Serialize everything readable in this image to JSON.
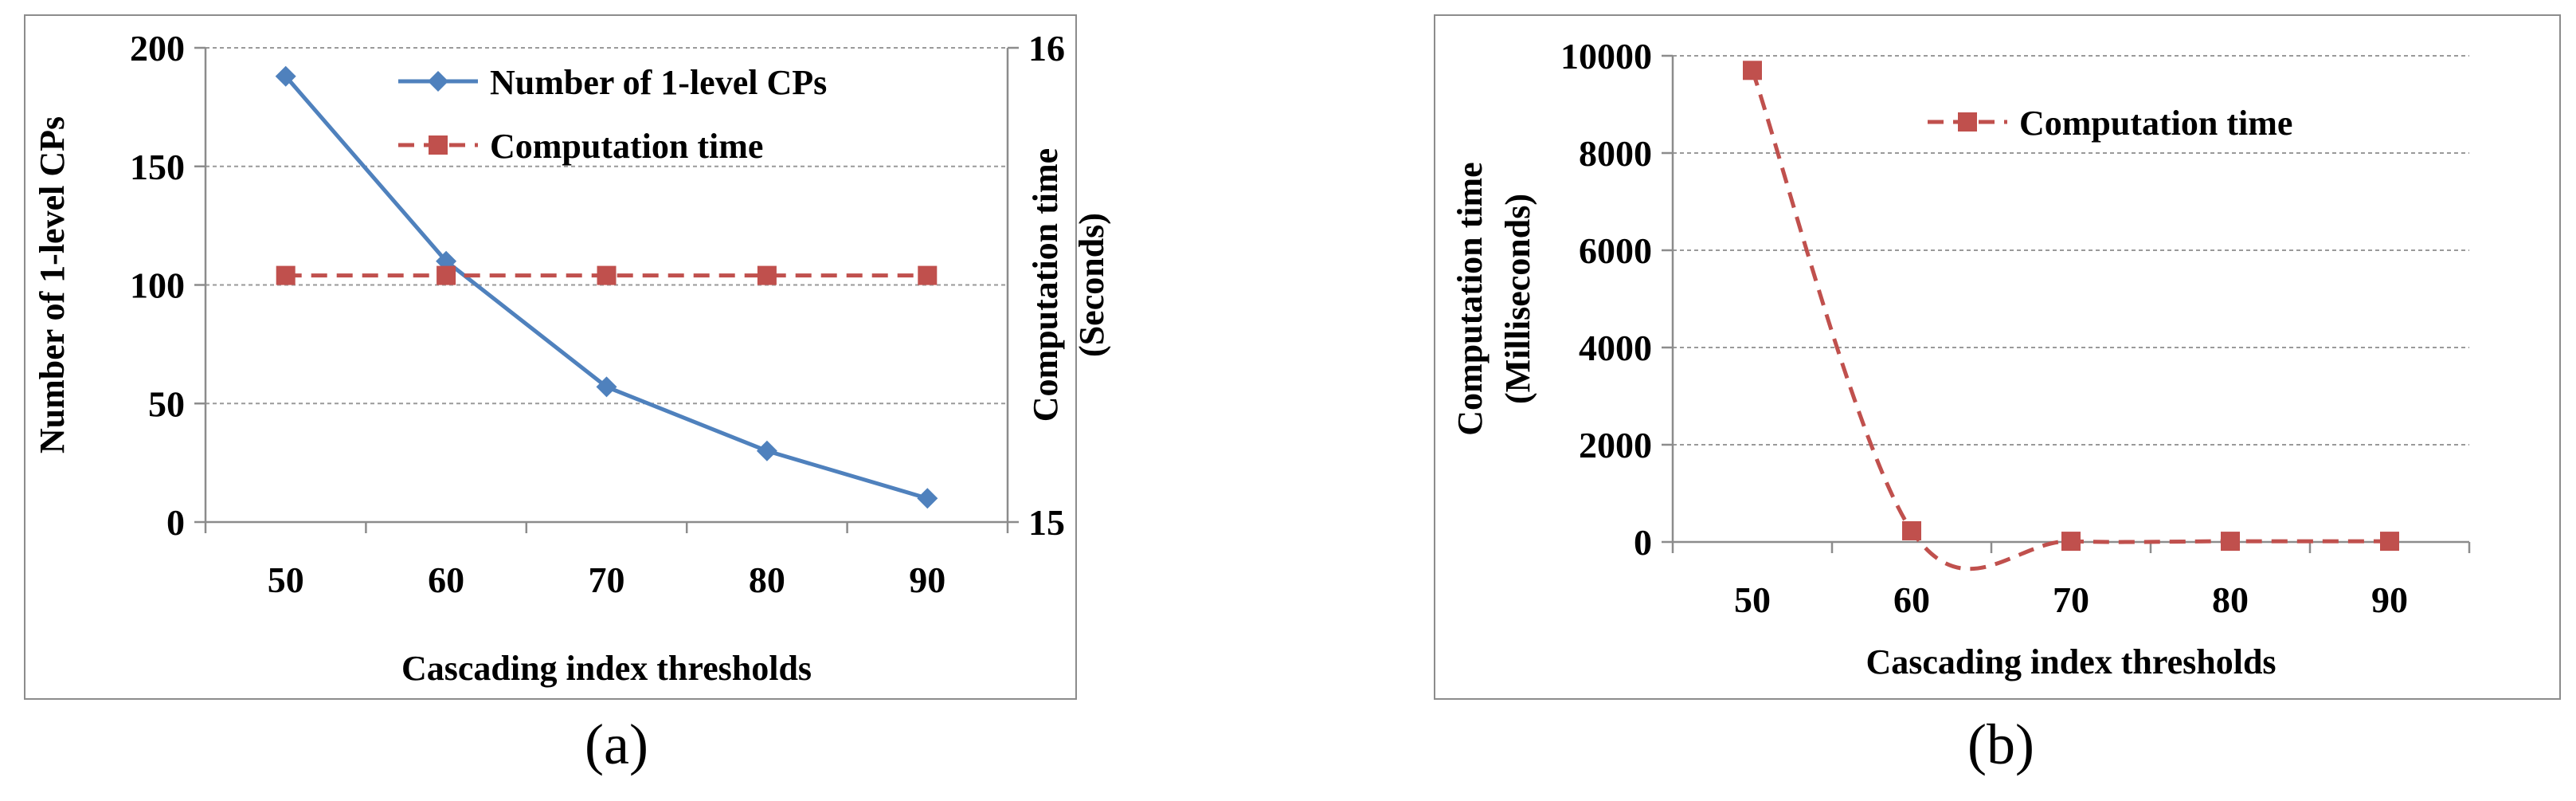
{
  "chart_data": [
    {
      "panel": "a",
      "type": "line",
      "xlabel": "Cascading index thresholds",
      "ylabel": "Number of 1-level CPs",
      "y2label_line1": "Computation time",
      "y2label_line2": "(Seconds)",
      "x": [
        50,
        60,
        70,
        80,
        90
      ],
      "ylim": [
        0,
        200
      ],
      "yticks": [
        0,
        50,
        100,
        150,
        200
      ],
      "y2lim": [
        15,
        16
      ],
      "y2ticks": [
        15,
        16
      ],
      "grid": true,
      "legend": "top-right",
      "series": [
        {
          "name": "Number of 1-level CPs",
          "axis": "left",
          "color": "#4f81bd",
          "marker": "diamond",
          "dash": "solid",
          "values": [
            188,
            110,
            57,
            30,
            10
          ]
        },
        {
          "name": "Computation time",
          "axis": "right",
          "color": "#c0504d",
          "marker": "square",
          "dash": "dashed",
          "values": [
            15.52,
            15.52,
            15.52,
            15.52,
            15.52
          ]
        }
      ],
      "caption": "(a)"
    },
    {
      "panel": "b",
      "type": "line",
      "xlabel": "Cascading index thresholds",
      "ylabel_line1": "Computation time",
      "ylabel_line2": "(Milliseconds)",
      "x": [
        50,
        60,
        70,
        80,
        90
      ],
      "ylim": [
        0,
        10000
      ],
      "yticks": [
        0,
        2000,
        4000,
        6000,
        8000,
        10000
      ],
      "grid": true,
      "legend": "top-right",
      "series": [
        {
          "name": "Computation time",
          "axis": "left",
          "color": "#c0504d",
          "marker": "square",
          "dash": "dashed",
          "values": [
            9700,
            230,
            15,
            15,
            15
          ]
        }
      ],
      "caption": "(b)"
    }
  ]
}
